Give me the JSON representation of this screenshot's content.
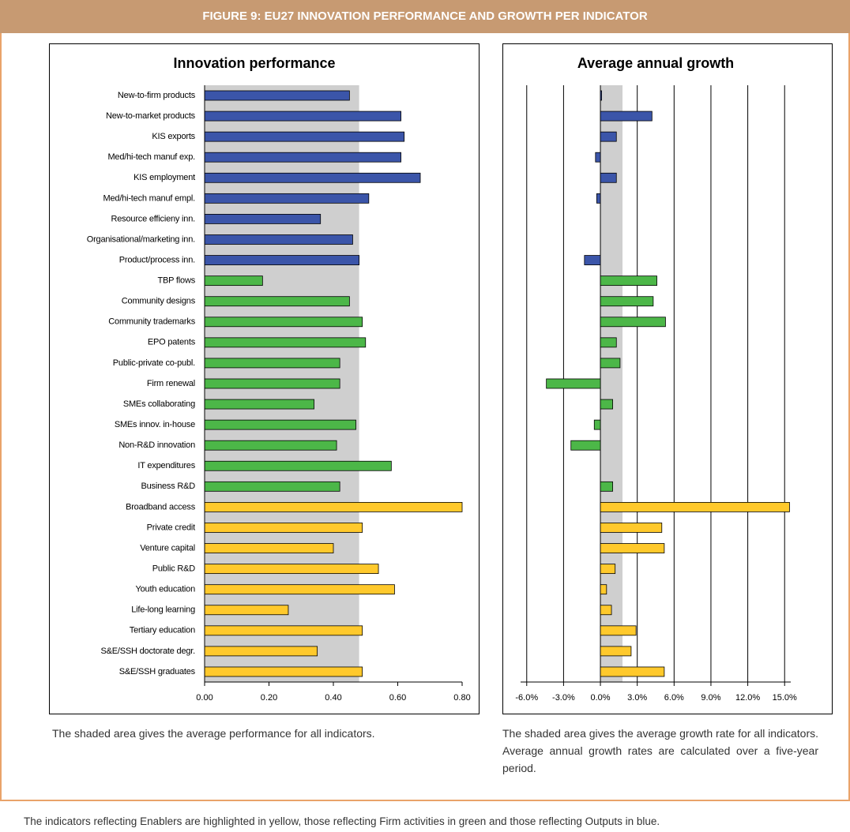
{
  "header": {
    "title": "FIGURE 9: EU27 INNOVATION PERFORMANCE AND GROWTH PER INDICATOR"
  },
  "chart_data": [
    {
      "type": "bar",
      "orientation": "horizontal",
      "title": "Innovation performance",
      "categories": [
        "New-to-firm products",
        "New-to-market products",
        "KIS exports",
        "Med/hi-tech manuf exp.",
        "KIS employment",
        "Med/hi-tech manuf empl.",
        "Resource efficieny inn.",
        "Organisational/marketing inn.",
        "Product/process inn.",
        "TBP flows",
        "Community designs",
        "Community trademarks",
        "EPO patents",
        "Public-private co-publ.",
        "Firm renewal",
        "SMEs collaborating",
        "SMEs innov. in-house",
        "Non-R&D innovation",
        "IT expenditures",
        "Business R&D",
        "Broadband access",
        "Private credit",
        "Venture capital",
        "Public R&D",
        "Youth education",
        "Life-long learning",
        "Tertiary education",
        "S&E/SSH doctorate degr.",
        "S&E/SSH graduates"
      ],
      "values": [
        0.45,
        0.61,
        0.62,
        0.61,
        0.67,
        0.51,
        0.36,
        0.46,
        0.48,
        0.18,
        0.45,
        0.49,
        0.5,
        0.42,
        0.42,
        0.34,
        0.47,
        0.41,
        0.58,
        0.42,
        0.8,
        0.49,
        0.4,
        0.54,
        0.59,
        0.26,
        0.49,
        0.35,
        0.49
      ],
      "bar_colors": [
        "#3b55a9",
        "#3b55a9",
        "#3b55a9",
        "#3b55a9",
        "#3b55a9",
        "#3b55a9",
        "#3b55a9",
        "#3b55a9",
        "#3b55a9",
        "#4cb748",
        "#4cb748",
        "#4cb748",
        "#4cb748",
        "#4cb748",
        "#4cb748",
        "#4cb748",
        "#4cb748",
        "#4cb748",
        "#4cb748",
        "#4cb748",
        "#ffc92c",
        "#ffc92c",
        "#ffc92c",
        "#ffc92c",
        "#ffc92c",
        "#ffc92c",
        "#ffc92c",
        "#ffc92c",
        "#ffc92c"
      ],
      "shade": [
        0,
        0.48
      ],
      "xlim": [
        0,
        0.8
      ],
      "xticks": [
        {
          "value": 0,
          "label": "0.00"
        },
        {
          "value": 0.2,
          "label": "0.20"
        },
        {
          "value": 0.4,
          "label": "0.40"
        },
        {
          "value": 0.6,
          "label": "0.60"
        },
        {
          "value": 0.8,
          "label": "0.80"
        }
      ],
      "grid": false
    },
    {
      "type": "bar",
      "orientation": "horizontal",
      "title": "Average annual growth",
      "values": [
        0.1,
        4.2,
        1.3,
        -0.4,
        1.3,
        -0.3,
        null,
        null,
        -1.3,
        4.6,
        4.3,
        5.3,
        1.3,
        1.6,
        -4.4,
        1.0,
        -0.5,
        -2.4,
        null,
        1.0,
        15.4,
        5.0,
        5.2,
        1.2,
        0.5,
        0.9,
        2.9,
        2.5,
        5.2
      ],
      "bar_colors": [
        "#3b55a9",
        "#3b55a9",
        "#3b55a9",
        "#3b55a9",
        "#3b55a9",
        "#3b55a9",
        "#3b55a9",
        "#3b55a9",
        "#3b55a9",
        "#4cb748",
        "#4cb748",
        "#4cb748",
        "#4cb748",
        "#4cb748",
        "#4cb748",
        "#4cb748",
        "#4cb748",
        "#4cb748",
        "#4cb748",
        "#4cb748",
        "#ffc92c",
        "#ffc92c",
        "#ffc92c",
        "#ffc92c",
        "#ffc92c",
        "#ffc92c",
        "#ffc92c",
        "#ffc92c",
        "#ffc92c"
      ],
      "shade": [
        0,
        1.8
      ],
      "xlim": [
        -6.5,
        15.5
      ],
      "xticks": [
        {
          "value": -6,
          "label": "-6.0%"
        },
        {
          "value": -3,
          "label": "-3.0%"
        },
        {
          "value": 0,
          "label": "0.0%"
        },
        {
          "value": 3,
          "label": "3.0%"
        },
        {
          "value": 6,
          "label": "6.0%"
        },
        {
          "value": 9,
          "label": "9.0%"
        },
        {
          "value": 12,
          "label": "12.0%"
        },
        {
          "value": 15,
          "label": "15.0%"
        }
      ],
      "grid": true
    }
  ],
  "captions": [
    "The shaded area gives the average performance for all indicators.",
    "The shaded area gives the average growth rate for all indicators. Average annual growth rates are calculated over a five-year period."
  ],
  "footer": "The indicators reflecting Enablers are highlighted in yellow, those reflecting Firm activities in green and those reflecting Outputs in blue."
}
